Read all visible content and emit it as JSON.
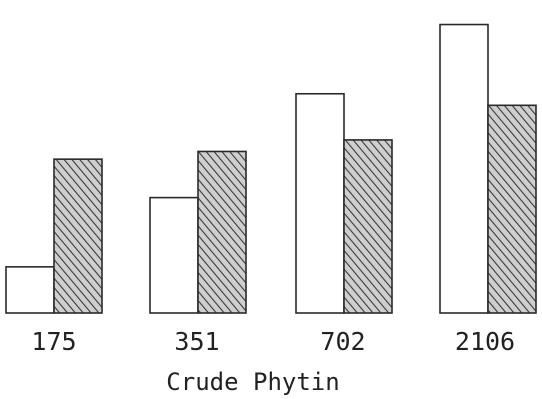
{
  "chart_data": {
    "type": "bar",
    "categories": [
      "175",
      "351",
      "702",
      "2106"
    ],
    "series": [
      {
        "values": [
          12,
          30,
          57,
          75
        ],
        "fill": "white"
      },
      {
        "values": [
          40,
          42,
          45,
          54
        ],
        "fill": "hatched"
      }
    ],
    "xlabel": "Crude Phytin",
    "ylabel": "",
    "title": "",
    "ylim": [
      0,
      78
    ],
    "grid": false,
    "legend": "none"
  },
  "colors": {
    "stroke": "#2a2a2a",
    "hatch": "#3a3a3a",
    "hatch_bg": "#cfcfcf",
    "text": "#222222"
  }
}
